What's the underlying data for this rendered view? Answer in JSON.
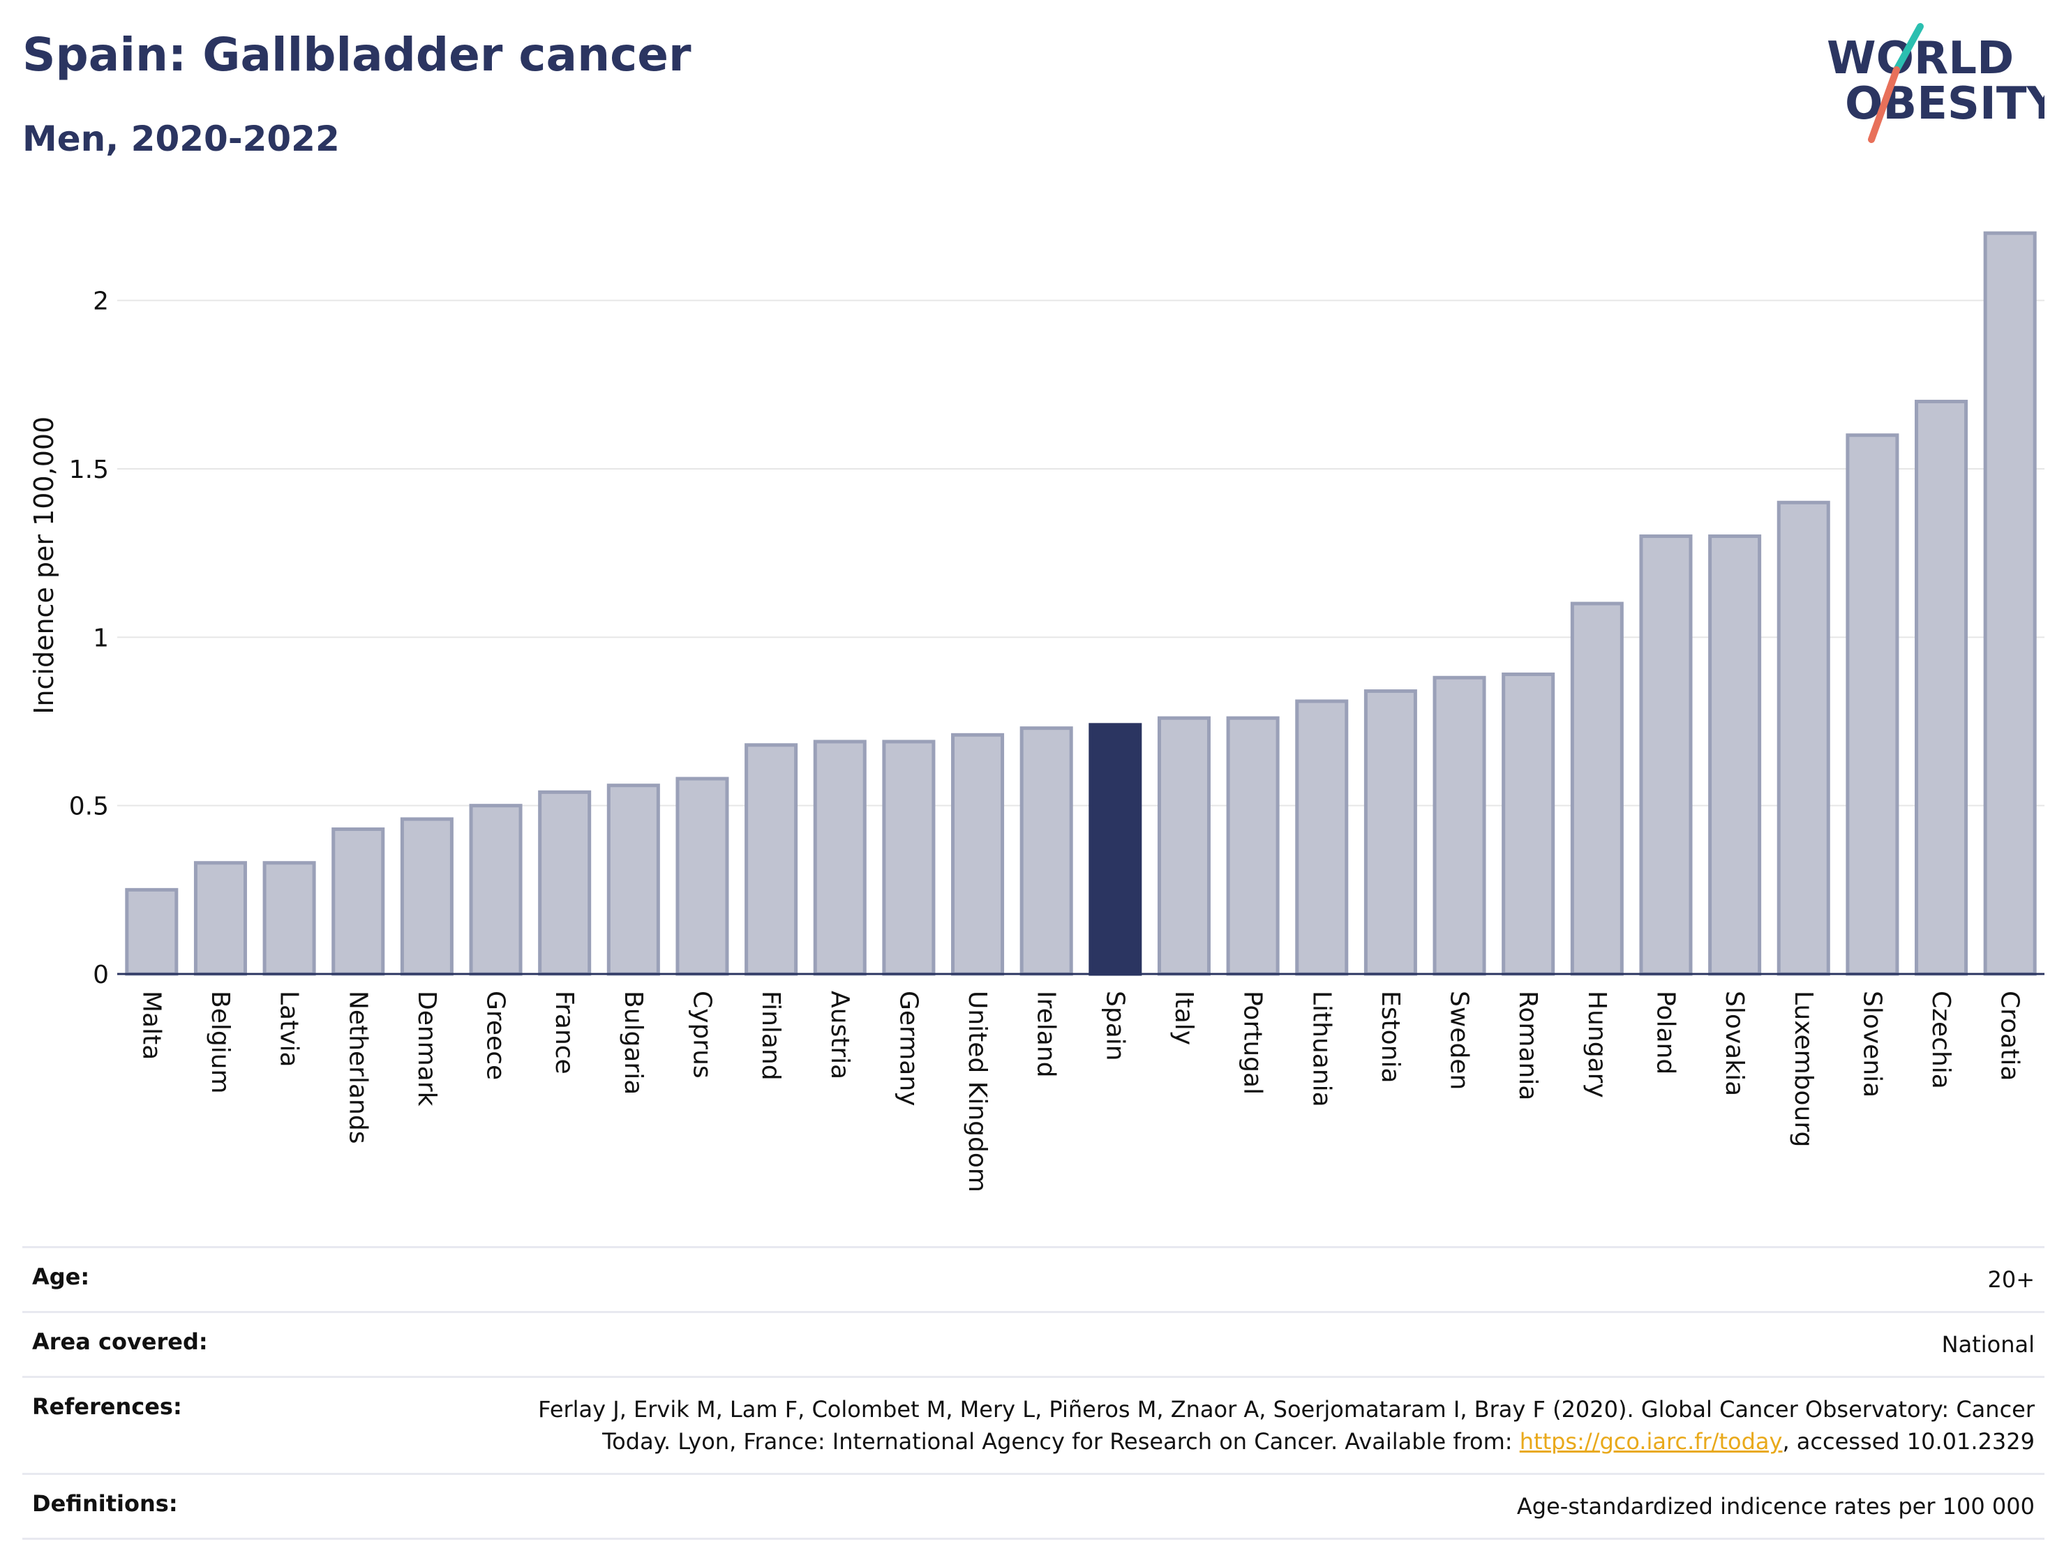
{
  "header": {
    "title": "Spain: Gallbladder cancer",
    "subtitle": "Men, 2020-2022"
  },
  "logo": {
    "line1": "WORLD",
    "line2": "OBESITY",
    "slash_colors": [
      "#2bbfb0",
      "#e8705a"
    ]
  },
  "colors": {
    "bar": "#c0c3d1",
    "bar_border": "#9aa0b8",
    "highlight": "#2b3561",
    "grid": "#e6e6e6",
    "axis": "#2b3561"
  },
  "chart_data": {
    "type": "bar",
    "title": "Spain: Gallbladder cancer",
    "subtitle": "Men, 2020-2022",
    "xlabel": "",
    "ylabel": "Incidence per 100,000",
    "ylim": [
      0,
      2.25
    ],
    "yticks": [
      0,
      0.5,
      1,
      1.5,
      2
    ],
    "ytick_labels": [
      "0",
      "0.5",
      "1",
      "1.5",
      "2"
    ],
    "grid": true,
    "highlight": "Spain",
    "categories": [
      "Malta",
      "Belgium",
      "Latvia",
      "Netherlands",
      "Denmark",
      "Greece",
      "France",
      "Bulgaria",
      "Cyprus",
      "Finland",
      "Austria",
      "Germany",
      "United Kingdom",
      "Ireland",
      "Spain",
      "Italy",
      "Portugal",
      "Lithuania",
      "Estonia",
      "Sweden",
      "Romania",
      "Hungary",
      "Poland",
      "Slovakia",
      "Luxembourg",
      "Slovenia",
      "Czechia",
      "Croatia"
    ],
    "values": [
      0.25,
      0.33,
      0.33,
      0.43,
      0.46,
      0.5,
      0.54,
      0.56,
      0.58,
      0.68,
      0.69,
      0.69,
      0.71,
      0.73,
      0.74,
      0.76,
      0.76,
      0.81,
      0.84,
      0.88,
      0.89,
      1.1,
      1.3,
      1.3,
      1.4,
      1.6,
      1.7,
      2.2
    ]
  },
  "meta": {
    "age": {
      "label": "Age:",
      "value": "20+"
    },
    "area": {
      "label": "Area covered:",
      "value": "National"
    },
    "references": {
      "label": "References:",
      "text_line1": "Ferlay J, Ervik M, Lam F, Colombet M, Mery L, Piñeros M, Znaor A, Soerjomataram I, Bray F (2020). Global Cancer Observatory: Cancer",
      "text_line2_before": "Today. Lyon, France: International Agency for Research on Cancer. Available from: ",
      "link": "https://gco.iarc.fr/today",
      "text_line2_after": ", accessed 10.01.2329"
    },
    "definitions": {
      "label": "Definitions:",
      "value": "Age-standardized indicence rates per 100 000"
    }
  }
}
